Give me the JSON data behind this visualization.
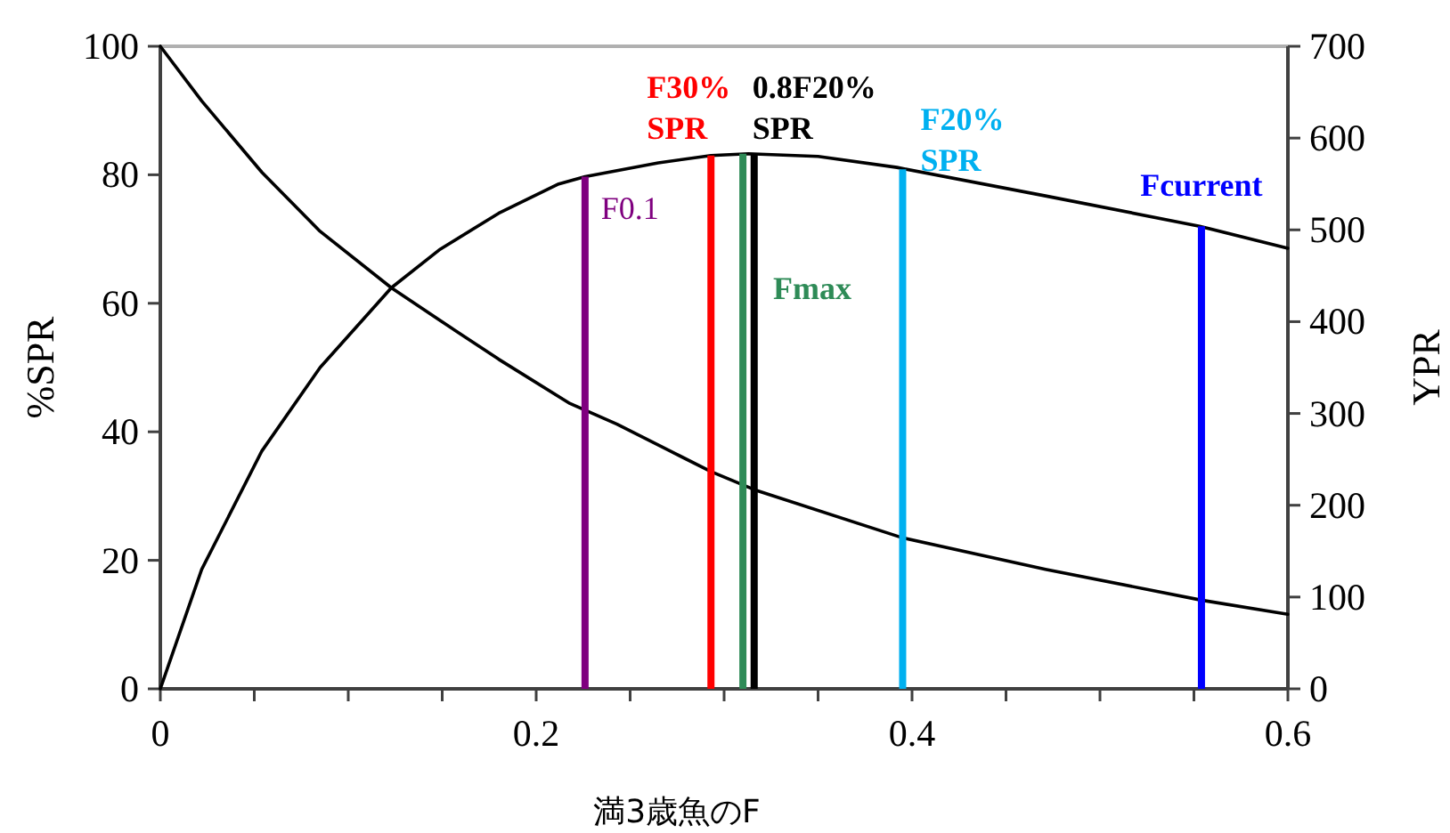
{
  "chart_data": {
    "type": "line",
    "xlabel": "満3歳魚のF",
    "ylabel": "%SPR",
    "y2label": "YPR",
    "xlim": [
      0,
      0.6
    ],
    "ylim": [
      0,
      100
    ],
    "y2lim": [
      0,
      700
    ],
    "xticks": [
      0,
      {
        "value": 0.05,
        "label": null
      },
      {
        "value": 0.1,
        "label": null
      },
      {
        "value": 0.15,
        "label": null
      },
      0.2,
      {
        "value": 0.25,
        "label": null
      },
      {
        "value": 0.3,
        "label": null
      },
      {
        "value": 0.35,
        "label": null
      },
      0.4,
      {
        "value": 0.45,
        "label": null
      },
      {
        "value": 0.5,
        "label": null
      },
      {
        "value": 0.55,
        "label": null
      },
      0.6
    ],
    "yticks": [
      0,
      20,
      40,
      60,
      80,
      100
    ],
    "y2ticks": [
      0,
      100,
      200,
      300,
      400,
      500,
      600,
      700
    ],
    "marker": "none",
    "line_style": "solid",
    "series": [
      {
        "color": "#000000",
        "x": [
          0,
          0.022,
          0.054,
          0.085,
          0.123,
          0.149,
          0.18,
          0.218,
          0.243,
          0.293,
          0.316,
          0.395,
          0.471,
          0.554,
          0.6
        ],
        "values": [
          100,
          91.5,
          80.4,
          71.2,
          62.4,
          57.3,
          51.3,
          44.4,
          41.2,
          33.8,
          31.0,
          23.5,
          18.6,
          13.8,
          11.6
        ]
      },
      {
        "color": "#000000",
        "axis": "y2",
        "x": [
          0,
          0.022,
          0.054,
          0.085,
          0.123,
          0.149,
          0.18,
          0.212,
          0.226,
          0.265,
          0.293,
          0.313,
          0.35,
          0.392,
          0.471,
          0.553,
          0.6
        ],
        "values": [
          0,
          130,
          259,
          350,
          437,
          479,
          518,
          550,
          558,
          573,
          581,
          583,
          580,
          568,
          537,
          504,
          480
        ]
      },
      {
        "name": "F0.1",
        "color": "#7f007f",
        "axis": "y2",
        "x": [
          0.226,
          0.226
        ],
        "values": [
          0,
          558
        ]
      },
      {
        "name": "F30% SPR",
        "color": "#ff0000",
        "axis": "y2",
        "x": [
          0.293,
          0.293
        ],
        "values": [
          0,
          581
        ]
      },
      {
        "name": "Fmax",
        "color": "#2e8b57",
        "axis": "y2",
        "x": [
          0.31,
          0.31
        ],
        "values": [
          0,
          583
        ]
      },
      {
        "name": "0.8F20% SPR",
        "color": "#000000",
        "axis": "y2",
        "x": [
          0.316,
          0.316
        ],
        "values": [
          0,
          583
        ]
      },
      {
        "name": "F20% SPR",
        "color": "#00b0f0",
        "axis": "y2",
        "x": [
          0.395,
          0.395
        ],
        "values": [
          0,
          566
        ]
      },
      {
        "name": "Fcurrent",
        "color": "#0000ff",
        "axis": "y2",
        "x": [
          0.554,
          0.554
        ],
        "values": [
          0,
          504
        ]
      }
    ]
  }
}
